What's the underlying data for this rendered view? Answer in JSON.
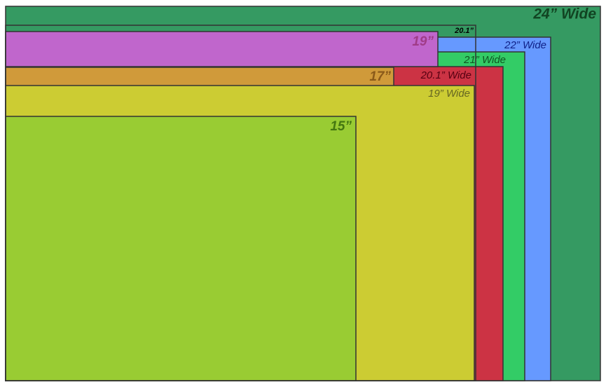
{
  "screens": [
    {
      "label": "24” Wide"
    },
    {
      "label": "22” Wide"
    },
    {
      "label": "21” Wide"
    },
    {
      "label": "20.1” Wide"
    },
    {
      "label": "20.1”"
    },
    {
      "label": "19”"
    },
    {
      "label": "17”"
    },
    {
      "label": "19” Wide"
    },
    {
      "label": "15”"
    }
  ]
}
